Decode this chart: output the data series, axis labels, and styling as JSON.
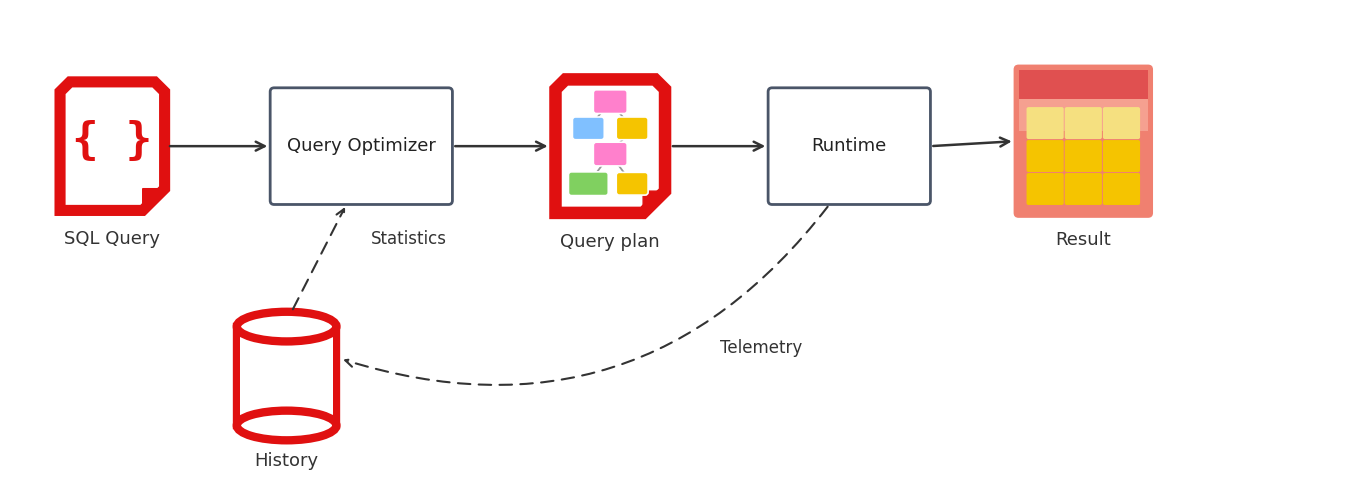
{
  "bg_color": "#ffffff",
  "red_color": "#e01010",
  "yellow_bright": "#f5c400",
  "yellow_light": "#f5e080",
  "result_bg_top": "#e05050",
  "result_bg_main": "#f08070",
  "result_bg_light": "#f5a090",
  "box_border": "#4a5568",
  "sql_query_label": "SQL Query",
  "query_optimizer_label": "Query Optimizer",
  "query_plan_label": "Query plan",
  "runtime_label": "Runtime",
  "result_label": "Result",
  "history_label": "History",
  "statistics_label": "Statistics",
  "telemetry_label": "Telemetry",
  "label_fontsize": 13,
  "node_pink": "#ff80cc",
  "node_blue": "#80c0ff",
  "node_yellow": "#f5c400",
  "node_green": "#80d060",
  "node_yellow2": "#f5e000"
}
